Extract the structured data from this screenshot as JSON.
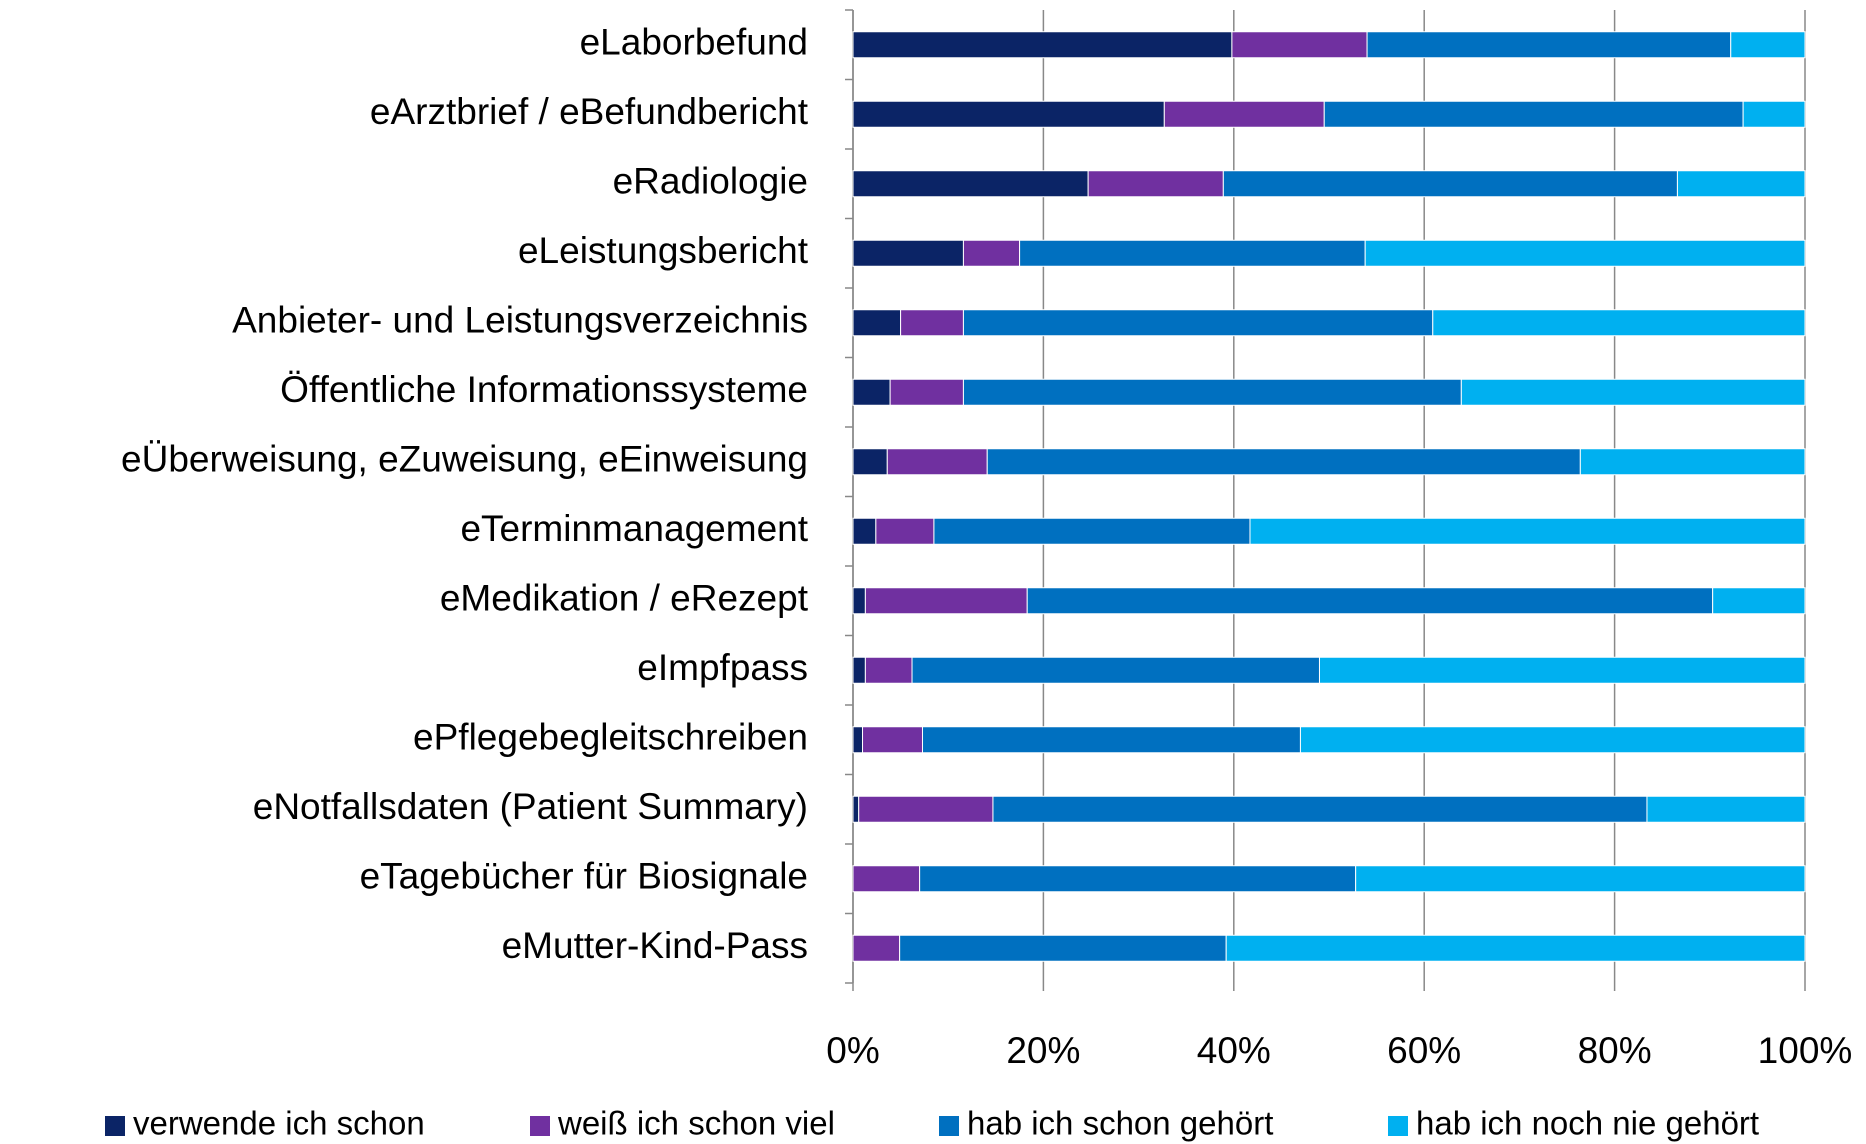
{
  "chart_data": {
    "type": "stacked_barh",
    "categories": [
      "eLaborbefund",
      "eArztbrief / eBefundbericht",
      "eRadiologie",
      "eLeistungsbericht",
      "Anbieter- und Leistungsverzeichnis",
      "Öffentliche Informationssysteme",
      "eÜberweisung, eZuweisung, eEinweisung",
      "eTerminmanagement",
      "eMedikation / eRezept",
      "eImpfpass",
      "ePflegebegleitschreiben",
      "eNotfallsdaten (Patient Summary)",
      "eTagebücher für Biosignale",
      "eMutter-Kind-Pass"
    ],
    "series": [
      {
        "name": "verwende ich schon",
        "color": "#0b2466",
        "values": [
          39.8,
          32.7,
          24.7,
          11.6,
          5.0,
          3.9,
          3.6,
          2.4,
          1.3,
          1.3,
          1.0,
          0.6,
          0,
          0
        ]
      },
      {
        "name": "weiß ich schon viel",
        "color": "#7030a0",
        "values": [
          14.2,
          16.8,
          14.2,
          5.9,
          6.6,
          7.7,
          10.5,
          6.1,
          17.0,
          4.9,
          6.3,
          14.1,
          7.0,
          4.9
        ]
      },
      {
        "name": "hab ich schon gehört",
        "color": "#0070c0",
        "values": [
          38.2,
          44.0,
          47.7,
          36.3,
          49.3,
          52.3,
          62.3,
          33.2,
          72.0,
          42.8,
          39.7,
          68.7,
          45.8,
          34.3
        ]
      },
      {
        "name": "hab ich noch nie gehört",
        "color": "#00b0f0",
        "values": [
          7.8,
          6.5,
          13.4,
          46.2,
          39.1,
          36.1,
          23.6,
          58.3,
          9.7,
          51.0,
          53.0,
          16.6,
          47.2,
          60.8
        ]
      }
    ],
    "xlim": [
      0,
      100
    ],
    "xticks": [
      {
        "value": 0,
        "label": "0%"
      },
      {
        "value": 20,
        "label": "20%"
      },
      {
        "value": 40,
        "label": "40%"
      },
      {
        "value": 60,
        "label": "60%"
      },
      {
        "value": 80,
        "label": "80%"
      },
      {
        "value": 100,
        "label": "100%"
      }
    ],
    "grid": true,
    "legend": "bottom"
  }
}
